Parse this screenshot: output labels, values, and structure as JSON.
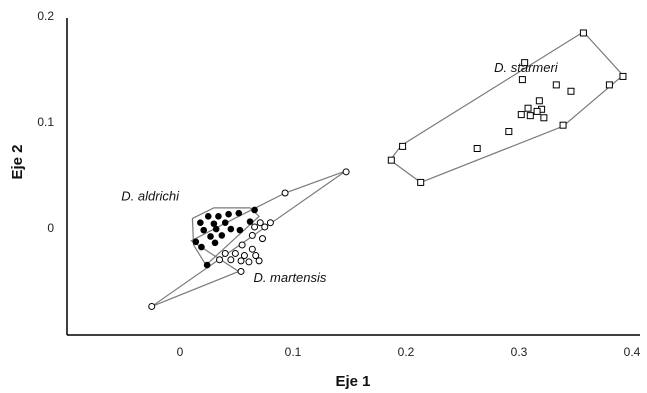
{
  "chart_data": {
    "type": "scatter",
    "title": "",
    "xlabel": "Eje 1",
    "ylabel": "Eje 2",
    "xlim": [
      -0.1,
      0.4
    ],
    "ylim": [
      -0.1,
      0.2
    ],
    "x_ticks": [
      "0",
      "0.1",
      "0.2",
      "0.3",
      "0.4"
    ],
    "y_ticks": [
      "0.2",
      "0.1",
      "0"
    ],
    "grid": false,
    "legend": "none",
    "series": [
      {
        "name": "D. aldrichi",
        "marker": "filled-circle",
        "color": "#000000",
        "points": [
          [
            0.025,
            0.011
          ],
          [
            0.034,
            0.011
          ],
          [
            0.043,
            0.013
          ],
          [
            0.052,
            0.014
          ],
          [
            0.066,
            0.017
          ],
          [
            0.018,
            0.005
          ],
          [
            0.03,
            0.004
          ],
          [
            0.04,
            0.005
          ],
          [
            0.062,
            0.006
          ],
          [
            0.021,
            -0.002
          ],
          [
            0.032,
            -0.001
          ],
          [
            0.045,
            -0.001
          ],
          [
            0.053,
            -0.002
          ],
          [
            0.014,
            -0.013
          ],
          [
            0.027,
            -0.008
          ],
          [
            0.037,
            -0.007
          ],
          [
            0.019,
            -0.018
          ],
          [
            0.031,
            -0.014
          ],
          [
            0.024,
            -0.035
          ]
        ]
      },
      {
        "name": "D. martensis",
        "marker": "open-circle",
        "color": "#000000",
        "points": [
          [
            0.071,
            0.005
          ],
          [
            0.08,
            0.005
          ],
          [
            0.066,
            0.001
          ],
          [
            0.075,
            0.001
          ],
          [
            0.064,
            -0.007
          ],
          [
            0.073,
            -0.01
          ],
          [
            0.055,
            -0.016
          ],
          [
            0.064,
            -0.02
          ],
          [
            0.04,
            -0.024
          ],
          [
            0.049,
            -0.024
          ],
          [
            0.057,
            -0.026
          ],
          [
            0.067,
            -0.026
          ],
          [
            0.035,
            -0.03
          ],
          [
            0.045,
            -0.03
          ],
          [
            0.054,
            -0.031
          ],
          [
            0.061,
            -0.032
          ],
          [
            0.07,
            -0.031
          ],
          [
            0.054,
            -0.041
          ],
          [
            0.093,
            0.033
          ],
          [
            0.147,
            0.053
          ],
          [
            -0.025,
            -0.074
          ]
        ]
      },
      {
        "name": "D. starmeri",
        "marker": "open-square",
        "color": "#000000",
        "points": [
          [
            0.357,
            0.184
          ],
          [
            0.392,
            0.143
          ],
          [
            0.305,
            0.156
          ],
          [
            0.303,
            0.14
          ],
          [
            0.333,
            0.135
          ],
          [
            0.346,
            0.129
          ],
          [
            0.38,
            0.135
          ],
          [
            0.318,
            0.12
          ],
          [
            0.308,
            0.113
          ],
          [
            0.32,
            0.112
          ],
          [
            0.31,
            0.106
          ],
          [
            0.302,
            0.107
          ],
          [
            0.316,
            0.11
          ],
          [
            0.322,
            0.104
          ],
          [
            0.339,
            0.097
          ],
          [
            0.291,
            0.091
          ],
          [
            0.263,
            0.075
          ],
          [
            0.197,
            0.077
          ],
          [
            0.187,
            0.064
          ],
          [
            0.213,
            0.043
          ]
        ]
      }
    ],
    "hulls": [
      {
        "name": "D. aldrichi",
        "points": [
          [
            0.011,
            0.009
          ],
          [
            0.03,
            0.019
          ],
          [
            0.062,
            0.019
          ],
          [
            0.07,
            0.011
          ],
          [
            0.023,
            -0.035
          ],
          [
            0.012,
            -0.016
          ]
        ]
      },
      {
        "name": "D. martensis",
        "points": [
          [
            -0.025,
            -0.074
          ],
          [
            0.147,
            0.054
          ],
          [
            0.093,
            0.033
          ],
          [
            0.052,
            0.011
          ],
          [
            0.01,
            -0.012
          ],
          [
            0.052,
            -0.041
          ]
        ]
      },
      {
        "name": "D. starmeri",
        "points": [
          [
            0.186,
            0.064
          ],
          [
            0.196,
            0.078
          ],
          [
            0.357,
            0.185
          ],
          [
            0.392,
            0.144
          ],
          [
            0.339,
            0.096
          ],
          [
            0.213,
            0.043
          ]
        ]
      }
    ],
    "annotations": [
      {
        "text": "D. starmeri",
        "x": 0.278,
        "y": 0.147
      },
      {
        "text": "D. aldrichi",
        "x": -0.052,
        "y": 0.026
      },
      {
        "text": "D. martensis",
        "x": 0.065,
        "y": -0.051
      }
    ]
  }
}
